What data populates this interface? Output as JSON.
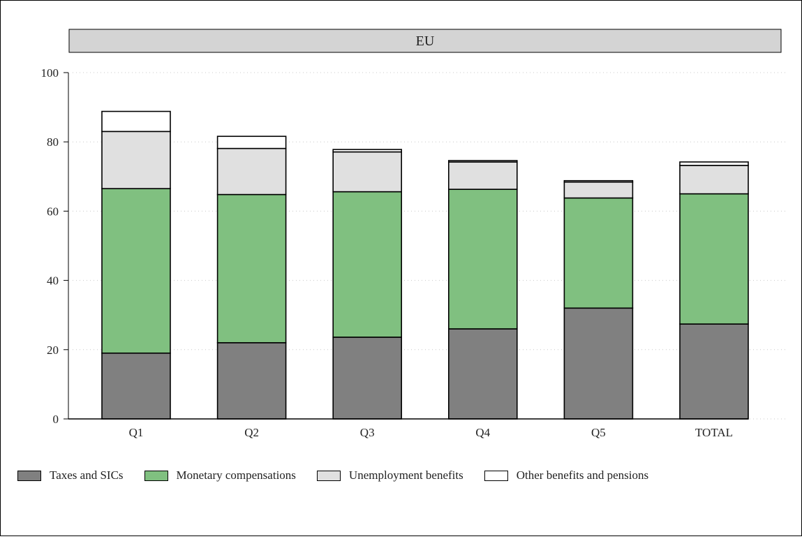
{
  "chart_data": {
    "type": "bar",
    "stacked": true,
    "title": "EU",
    "categories": [
      "Q1",
      "Q2",
      "Q3",
      "Q4",
      "Q5",
      "TOTAL"
    ],
    "ylim": [
      0,
      100
    ],
    "yticks": [
      0,
      20,
      40,
      60,
      80,
      100
    ],
    "grid": true,
    "legend_position": "bottom",
    "series": [
      {
        "name": "Taxes and SICs",
        "color": "#808080",
        "values": [
          19,
          22,
          23.6,
          26,
          32,
          27.4
        ]
      },
      {
        "name": "Monetary compensations",
        "color": "#80c080",
        "values": [
          47.5,
          42.8,
          42,
          40.3,
          31.8,
          37.6
        ]
      },
      {
        "name": "Unemployment benefits",
        "color": "#e0e0e0",
        "values": [
          16.5,
          13.3,
          11.5,
          7.9,
          4.6,
          8.2
        ]
      },
      {
        "name": "Other benefits and pensions",
        "color": "#ffffff",
        "values": [
          5.8,
          3.5,
          0.7,
          0.4,
          0.4,
          1.0
        ]
      }
    ]
  }
}
